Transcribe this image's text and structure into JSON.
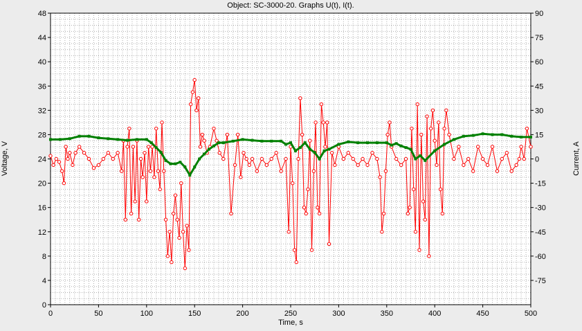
{
  "window": {
    "background": "#ececec"
  },
  "chart_data": {
    "type": "line",
    "title": "Object: SC-3000-20. Graphs U(t), I(t).",
    "xlabel": "Time, s",
    "ylabel": "Voltage, V",
    "y2label": "Current, A",
    "xlim": [
      0,
      500
    ],
    "ylim": [
      0,
      48
    ],
    "y2lim": [
      -90,
      90
    ],
    "x_ticks": [
      0,
      50,
      100,
      150,
      200,
      250,
      300,
      350,
      400,
      450,
      500
    ],
    "y_ticks": [
      0,
      4,
      8,
      12,
      16,
      20,
      24,
      28,
      32,
      36,
      40,
      44,
      48
    ],
    "y2_ticks": [
      -75,
      -60,
      -45,
      -30,
      -15,
      0,
      15,
      30,
      45,
      60,
      75,
      90
    ],
    "grid": true,
    "colors": {
      "voltage": "#ff0000",
      "current": "#008000",
      "grid": "#b0b0b0"
    },
    "series": [
      {
        "name": "U(t)",
        "axis": "left",
        "marker": "circle",
        "x": [
          0,
          3,
          6,
          9,
          12,
          14,
          16,
          18,
          20,
          23,
          26,
          30,
          35,
          40,
          45,
          50,
          55,
          60,
          65,
          70,
          74,
          76,
          78,
          80,
          82,
          84,
          86,
          88,
          90,
          92,
          94,
          96,
          98,
          100,
          102,
          104,
          106,
          108,
          110,
          112,
          114,
          116,
          118,
          120,
          122,
          124,
          126,
          128,
          130,
          132,
          134,
          136,
          138,
          140,
          142,
          144,
          146,
          148,
          150,
          152,
          154,
          156,
          158,
          160,
          163,
          166,
          170,
          173,
          176,
          180,
          184,
          188,
          192,
          195,
          198,
          201,
          204,
          207,
          210,
          215,
          220,
          225,
          230,
          235,
          240,
          245,
          248,
          250,
          252,
          254,
          256,
          258,
          260,
          262,
          264,
          266,
          268,
          270,
          272,
          274,
          276,
          278,
          280,
          282,
          284,
          286,
          288,
          290,
          293,
          296,
          300,
          305,
          310,
          315,
          320,
          325,
          330,
          335,
          340,
          343,
          345,
          347,
          349,
          351,
          353,
          355,
          360,
          365,
          370,
          372,
          374,
          376,
          378,
          380,
          382,
          384,
          386,
          388,
          390,
          392,
          394,
          396,
          398,
          400,
          402,
          404,
          406,
          408,
          410,
          412,
          415,
          420,
          425,
          430,
          435,
          440,
          445,
          450,
          455,
          460,
          465,
          470,
          475,
          480,
          485,
          488,
          490,
          493,
          496,
          500
        ],
        "values": [
          24.5,
          23,
          24,
          23.5,
          22,
          20,
          26,
          24,
          25,
          23,
          25,
          26,
          25,
          24,
          22.5,
          23,
          24,
          25,
          24,
          25,
          22,
          27,
          14,
          26,
          29,
          15,
          26,
          17,
          27,
          14,
          24,
          21,
          25,
          17,
          26,
          22,
          26,
          21,
          29,
          22,
          19,
          30,
          22,
          14,
          8,
          12,
          7,
          15,
          18,
          14,
          11,
          20,
          12,
          6,
          13,
          9,
          33,
          35,
          37,
          32,
          34,
          26,
          28,
          27,
          25,
          26,
          29,
          27,
          25,
          24,
          28,
          15,
          23,
          28,
          21,
          25,
          24,
          23,
          24,
          22,
          24,
          23,
          24,
          25,
          22,
          24,
          12,
          26,
          20,
          9,
          7,
          24,
          34,
          28,
          16,
          15,
          19,
          27,
          9,
          22,
          30,
          16,
          15,
          33,
          30,
          26,
          30,
          10,
          25,
          23,
          26,
          24,
          25,
          24,
          23,
          24,
          23,
          25,
          24,
          21,
          12,
          15,
          22,
          28,
          30,
          26,
          24,
          23,
          24,
          15,
          16,
          29,
          19,
          12,
          33,
          9,
          28,
          17,
          14,
          31,
          8,
          29,
          32,
          27,
          23,
          30,
          19,
          15,
          29,
          32,
          28,
          24,
          26,
          23,
          24,
          22,
          26,
          24,
          23,
          26,
          22,
          24,
          25,
          22,
          23,
          24,
          26,
          24,
          29,
          26
        ],
        "color": "#ff0000"
      },
      {
        "name": "I(t)",
        "axis": "right",
        "marker": "square",
        "x": [
          0,
          10,
          20,
          30,
          40,
          50,
          60,
          70,
          80,
          90,
          100,
          105,
          110,
          115,
          120,
          125,
          130,
          135,
          140,
          145,
          150,
          155,
          160,
          165,
          170,
          175,
          180,
          190,
          200,
          210,
          220,
          230,
          240,
          245,
          250,
          255,
          260,
          265,
          270,
          275,
          280,
          285,
          290,
          300,
          310,
          320,
          330,
          340,
          350,
          355,
          360,
          365,
          370,
          375,
          380,
          385,
          390,
          400,
          410,
          420,
          430,
          440,
          450,
          460,
          470,
          480,
          490,
          500
        ],
        "values": [
          12,
          12,
          12.5,
          14,
          14,
          13,
          12.5,
          12,
          11.5,
          12,
          12,
          10,
          7,
          4,
          -1,
          -3,
          -3,
          -2,
          -5,
          -10,
          -5,
          0,
          3,
          6,
          8,
          10,
          10,
          11,
          12,
          11.5,
          11,
          11,
          11,
          9,
          10,
          5,
          7,
          10,
          6,
          4,
          0,
          5,
          6,
          9,
          10.5,
          10,
          10,
          10,
          10,
          8.5,
          9.5,
          8,
          7,
          6,
          0,
          2,
          -1,
          5,
          9,
          12,
          14,
          14.5,
          15.5,
          15,
          15,
          14,
          13.5,
          13.5
        ],
        "color": "#008000"
      }
    ]
  }
}
